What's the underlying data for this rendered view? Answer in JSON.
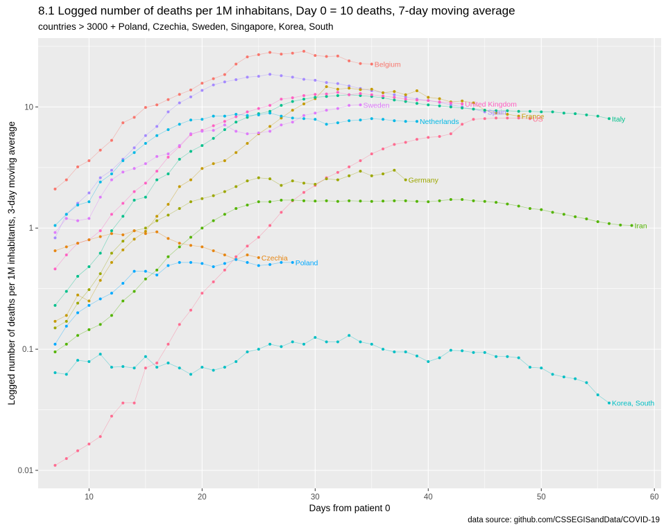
{
  "chart_data": {
    "type": "line",
    "title": "8.1 Logged number of deaths per 1M inhabitans, Day 0 = 10 deaths, 7-day moving average",
    "subtitle": "countries > 3000 + Poland, Czechia, Sweden, Singapore, Korea, South",
    "caption": "data source: github.com/CSSEGISandData/COVID-19",
    "xlabel": "Days from patient 0",
    "ylabel": "Logged number of deaths per 1M inhabitants, 3-day moving average",
    "y_scale": "log10",
    "xlim": [
      5.5,
      60.6
    ],
    "ylim": [
      0.0071,
      37
    ],
    "x_ticks": [
      10,
      20,
      30,
      40,
      50,
      60
    ],
    "y_ticks": [
      0.01,
      0.1,
      1,
      10
    ],
    "y_tick_labels": [
      "0.01",
      "0.1",
      "1",
      "10"
    ],
    "grid": true,
    "legend": "none",
    "series": [
      {
        "name": "Belgium",
        "color": "#F8766D",
        "x": [
          7,
          8,
          9,
          10,
          11,
          12,
          13,
          14,
          15,
          16,
          17,
          18,
          19,
          20,
          21,
          22,
          23,
          24,
          25,
          26,
          27,
          28,
          29,
          30,
          31,
          32,
          33,
          34,
          35
        ],
        "y": [
          2.1,
          2.5,
          3.2,
          3.6,
          4.4,
          5.3,
          7.4,
          8.2,
          9.9,
          10.4,
          11.5,
          12.7,
          13.8,
          15.7,
          17.1,
          18.5,
          22.6,
          25.9,
          27.0,
          28.2,
          27.3,
          27.8,
          28.8,
          26.6,
          26.1,
          26.3,
          24.0,
          22.8,
          22.6
        ]
      },
      {
        "name": "Spain",
        "color": "#A58AFF",
        "x": [
          7,
          8,
          9,
          10,
          11,
          12,
          13,
          14,
          15,
          16,
          17,
          18,
          19,
          20,
          21,
          22,
          23,
          24,
          25,
          26,
          27,
          28,
          29,
          30,
          31,
          32,
          33,
          34,
          35,
          36,
          37,
          38,
          39,
          40,
          41,
          42,
          43,
          44,
          45
        ],
        "y": [
          0.83,
          1.3,
          1.6,
          1.95,
          2.6,
          3.0,
          3.7,
          4.6,
          5.8,
          6.9,
          9.1,
          10.8,
          12.1,
          13.7,
          15.2,
          16.1,
          16.8,
          17.6,
          17.9,
          18.6,
          18.1,
          17.6,
          16.9,
          16.6,
          15.9,
          15.6,
          14.9,
          14.2,
          13.6,
          13.1,
          12.6,
          12.1,
          11.6,
          11.3,
          10.9,
          10.4,
          10.0,
          9.6,
          9.1
        ]
      },
      {
        "name": "France",
        "color": "#C49A00",
        "x": [
          7,
          8,
          9,
          10,
          11,
          12,
          13,
          14,
          15,
          16,
          17,
          18,
          19,
          20,
          21,
          22,
          23,
          24,
          25,
          26,
          27,
          28,
          29,
          30,
          31,
          32,
          33,
          34,
          35,
          36,
          37,
          38,
          39,
          40,
          41,
          42,
          43,
          44,
          45,
          46,
          47,
          48
        ],
        "y": [
          0.17,
          0.19,
          0.28,
          0.25,
          0.37,
          0.52,
          0.66,
          0.81,
          0.94,
          1.25,
          1.57,
          2.2,
          2.5,
          3.1,
          3.4,
          3.6,
          4.2,
          5.0,
          6.0,
          6.9,
          8.1,
          9.4,
          10.6,
          11.7,
          14.7,
          14.0,
          14.3,
          13.9,
          14.0,
          13.1,
          13.4,
          12.6,
          13.6,
          12.0,
          11.7,
          11.0,
          11.2,
          10.8,
          9.4,
          8.9,
          8.7,
          8.4
        ]
      },
      {
        "name": "US",
        "color": "#FF6C91",
        "x": [
          7,
          8,
          9,
          10,
          11,
          12,
          13,
          14,
          15,
          16,
          17,
          18,
          19,
          20,
          21,
          22,
          23,
          24,
          25,
          26,
          27,
          28,
          29,
          30,
          31,
          32,
          33,
          34,
          35,
          36,
          37,
          38,
          39,
          40,
          41,
          42,
          43,
          44,
          45,
          46,
          47,
          48,
          49
        ],
        "y": [
          0.011,
          0.0125,
          0.0145,
          0.0165,
          0.019,
          0.028,
          0.036,
          0.036,
          0.07,
          0.077,
          0.11,
          0.16,
          0.21,
          0.29,
          0.36,
          0.45,
          0.58,
          0.71,
          0.84,
          1.05,
          1.35,
          1.68,
          1.97,
          2.25,
          2.6,
          2.88,
          3.2,
          3.6,
          4.1,
          4.5,
          4.9,
          5.1,
          5.4,
          5.6,
          5.7,
          6.0,
          7.2,
          7.9,
          8.0,
          8.1,
          8.1,
          8.1,
          8.0
        ]
      },
      {
        "name": "Italy",
        "color": "#00C08B",
        "x": [
          7,
          8,
          9,
          10,
          11,
          12,
          13,
          14,
          15,
          16,
          17,
          18,
          19,
          20,
          21,
          22,
          23,
          24,
          25,
          26,
          27,
          28,
          29,
          30,
          31,
          32,
          33,
          34,
          35,
          36,
          37,
          38,
          39,
          40,
          41,
          42,
          43,
          44,
          45,
          46,
          47,
          48,
          49,
          50,
          51,
          52,
          53,
          54,
          55,
          56
        ],
        "y": [
          0.23,
          0.3,
          0.4,
          0.48,
          0.62,
          0.95,
          1.25,
          1.7,
          1.8,
          2.5,
          2.8,
          3.7,
          4.3,
          4.8,
          5.5,
          6.5,
          7.5,
          8.2,
          8.8,
          9.2,
          10.3,
          11.1,
          11.6,
          12.0,
          12.2,
          12.4,
          12.6,
          12.4,
          12.2,
          11.9,
          11.4,
          11.1,
          10.7,
          10.4,
          10.2,
          10.0,
          9.8,
          9.6,
          9.4,
          9.3,
          9.3,
          9.2,
          9.2,
          9.1,
          9.1,
          8.9,
          8.8,
          8.6,
          8.4,
          8.0
        ]
      },
      {
        "name": "United Kingdom",
        "color": "#FF61C3",
        "x": [
          7,
          8,
          9,
          10,
          11,
          12,
          13,
          14,
          15,
          16,
          17,
          18,
          19,
          20,
          21,
          22,
          23,
          24,
          25,
          26,
          27,
          28,
          29,
          30,
          31,
          32,
          33,
          34,
          35,
          36,
          37,
          38,
          39,
          40,
          41,
          42,
          43
        ],
        "y": [
          0.46,
          0.6,
          0.75,
          0.8,
          0.95,
          1.3,
          1.6,
          2.0,
          2.35,
          2.95,
          3.85,
          4.7,
          5.9,
          6.4,
          7.0,
          7.6,
          8.3,
          9.1,
          9.7,
          10.3,
          11.6,
          11.9,
          12.4,
          12.7,
          12.8,
          13.2,
          12.6,
          12.9,
          12.6,
          12.3,
          12.0,
          11.6,
          11.4,
          11.3,
          11.0,
          10.8,
          10.6
        ]
      },
      {
        "name": "Sweden",
        "color": "#DE7BFA",
        "x": [
          7,
          8,
          9,
          10,
          11,
          12,
          13,
          14,
          15,
          16,
          17,
          18,
          19,
          20,
          21,
          22,
          23,
          24,
          25,
          26,
          27,
          28,
          29,
          30,
          31,
          32,
          33,
          34
        ],
        "y": [
          0.92,
          1.2,
          1.15,
          1.2,
          1.8,
          2.5,
          2.9,
          3.1,
          3.4,
          3.9,
          4.1,
          4.8,
          6.0,
          6.3,
          6.4,
          7.1,
          6.3,
          6.0,
          6.1,
          6.3,
          7.1,
          7.5,
          8.5,
          8.9,
          9.4,
          9.7,
          10.3,
          10.4
        ]
      },
      {
        "name": "Netherlands",
        "color": "#00B8E5",
        "x": [
          7,
          8,
          9,
          10,
          11,
          12,
          13,
          14,
          15,
          16,
          17,
          18,
          19,
          20,
          21,
          22,
          23,
          24,
          25,
          26,
          27,
          28,
          29,
          30,
          31,
          32,
          33,
          34,
          35,
          36,
          37,
          38,
          39
        ],
        "y": [
          1.05,
          1.3,
          1.55,
          1.65,
          2.4,
          2.8,
          3.6,
          4.2,
          5.0,
          5.8,
          6.5,
          7.2,
          7.8,
          7.9,
          8.4,
          8.4,
          8.7,
          8.5,
          8.6,
          8.9,
          8.4,
          8.1,
          8.0,
          7.9,
          7.2,
          7.4,
          7.7,
          7.8,
          8.0,
          7.9,
          7.7,
          7.6,
          7.6
        ]
      },
      {
        "name": "Germany",
        "color": "#9CA700",
        "x": [
          7,
          8,
          9,
          10,
          11,
          12,
          13,
          14,
          15,
          16,
          17,
          18,
          19,
          20,
          21,
          22,
          23,
          24,
          25,
          26,
          27,
          28,
          29,
          30,
          31,
          32,
          33,
          34,
          35,
          36,
          37,
          38
        ],
        "y": [
          0.15,
          0.17,
          0.24,
          0.31,
          0.42,
          0.62,
          0.78,
          0.95,
          1.0,
          1.15,
          1.28,
          1.45,
          1.65,
          1.75,
          1.85,
          2.0,
          2.2,
          2.45,
          2.6,
          2.55,
          2.25,
          2.45,
          2.35,
          2.3,
          2.55,
          2.5,
          2.7,
          2.95,
          2.7,
          2.8,
          3.0,
          2.5
        ]
      },
      {
        "name": "Iran",
        "color": "#53B400",
        "x": [
          7,
          8,
          9,
          10,
          11,
          12,
          13,
          14,
          15,
          16,
          17,
          18,
          19,
          20,
          21,
          22,
          23,
          24,
          25,
          26,
          27,
          28,
          29,
          30,
          31,
          32,
          33,
          34,
          35,
          36,
          37,
          38,
          39,
          40,
          41,
          42,
          43,
          44,
          45,
          46,
          47,
          48,
          49,
          50,
          51,
          52,
          53,
          54,
          55,
          56,
          57,
          58
        ],
        "y": [
          0.095,
          0.11,
          0.13,
          0.145,
          0.16,
          0.19,
          0.25,
          0.3,
          0.38,
          0.45,
          0.58,
          0.7,
          0.84,
          1.0,
          1.15,
          1.3,
          1.45,
          1.55,
          1.65,
          1.65,
          1.7,
          1.7,
          1.68,
          1.67,
          1.68,
          1.66,
          1.68,
          1.67,
          1.66,
          1.67,
          1.68,
          1.68,
          1.66,
          1.65,
          1.68,
          1.72,
          1.72,
          1.68,
          1.66,
          1.63,
          1.58,
          1.52,
          1.45,
          1.42,
          1.35,
          1.3,
          1.24,
          1.19,
          1.13,
          1.09,
          1.06,
          1.05
        ]
      },
      {
        "name": "Czechia",
        "color": "#E68613",
        "x": [
          7,
          8,
          9,
          10,
          11,
          12,
          13,
          14,
          15,
          16,
          17,
          18,
          19,
          20,
          21,
          22,
          23,
          24,
          25
        ],
        "y": [
          0.65,
          0.7,
          0.75,
          0.8,
          0.85,
          0.9,
          0.88,
          0.95,
          0.9,
          0.93,
          0.82,
          0.75,
          0.72,
          0.7,
          0.65,
          0.6,
          0.55,
          0.6,
          0.57
        ]
      },
      {
        "name": "Poland",
        "color": "#00A9FF",
        "x": [
          7,
          8,
          9,
          10,
          11,
          12,
          13,
          14,
          15,
          16,
          17,
          18,
          19,
          20,
          21,
          22,
          23,
          24,
          25,
          26,
          27,
          28
        ],
        "y": [
          0.11,
          0.155,
          0.2,
          0.23,
          0.26,
          0.29,
          0.35,
          0.44,
          0.44,
          0.41,
          0.49,
          0.52,
          0.52,
          0.51,
          0.48,
          0.51,
          0.55,
          0.52,
          0.49,
          0.5,
          0.52,
          0.52
        ]
      },
      {
        "name": "Korea, South",
        "color": "#00BFC4",
        "x": [
          7,
          8,
          9,
          10,
          11,
          12,
          13,
          14,
          15,
          16,
          17,
          18,
          19,
          20,
          21,
          22,
          23,
          24,
          25,
          26,
          27,
          28,
          29,
          30,
          31,
          32,
          33,
          34,
          35,
          36,
          37,
          38,
          39,
          40,
          41,
          42,
          43,
          44,
          45,
          46,
          47,
          48,
          49,
          50,
          51,
          52,
          53,
          54,
          55,
          56
        ],
        "y": [
          0.064,
          0.062,
          0.081,
          0.079,
          0.091,
          0.071,
          0.072,
          0.07,
          0.087,
          0.071,
          0.077,
          0.07,
          0.062,
          0.071,
          0.067,
          0.071,
          0.079,
          0.095,
          0.1,
          0.11,
          0.105,
          0.115,
          0.11,
          0.125,
          0.115,
          0.115,
          0.13,
          0.115,
          0.11,
          0.1,
          0.095,
          0.095,
          0.088,
          0.079,
          0.085,
          0.098,
          0.097,
          0.094,
          0.094,
          0.087,
          0.087,
          0.085,
          0.071,
          0.07,
          0.062,
          0.059,
          0.057,
          0.053,
          0.042,
          0.036
        ]
      }
    ]
  }
}
